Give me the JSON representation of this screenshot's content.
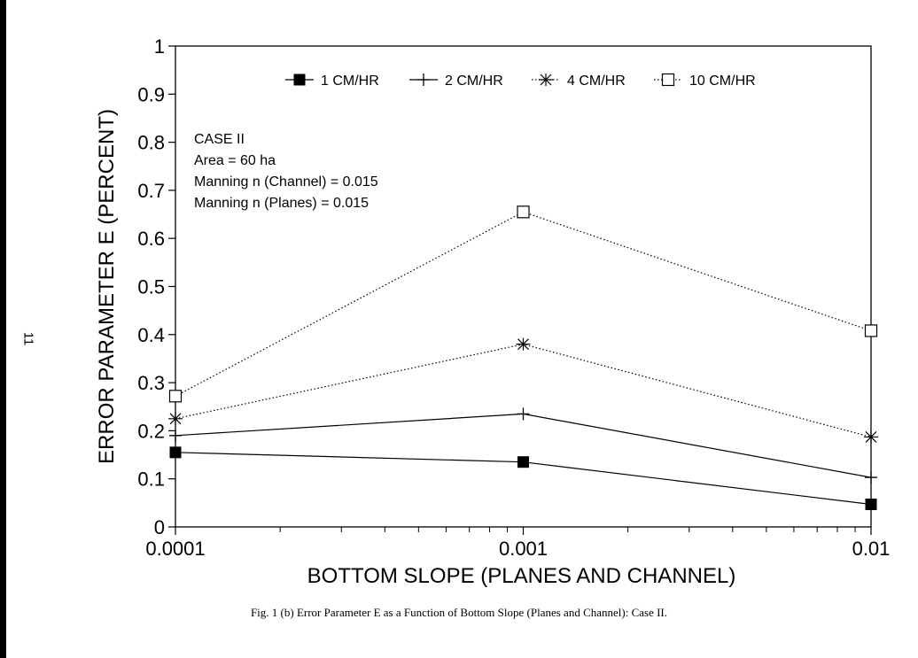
{
  "page_number": "11",
  "caption": "Fig. 1 (b) Error Parameter E as a Function of Bottom Slope (Planes and Channel): Case II.",
  "chart_data": {
    "type": "line",
    "title": "",
    "xlabel": "BOTTOM SLOPE (PLANES AND CHANNEL)",
    "ylabel": "ERROR PARAMETER E (PERCENT)",
    "x_scale": "log",
    "xlim": [
      0.0001,
      0.01
    ],
    "ylim": [
      0,
      1
    ],
    "x_ticks": [
      0.0001,
      0.001,
      0.01
    ],
    "x_tick_labels": [
      "0.0001",
      "0.001",
      "0.01"
    ],
    "y_ticks": [
      0,
      0.1,
      0.2,
      0.3,
      0.4,
      0.5,
      0.6,
      0.7,
      0.8,
      0.9,
      1
    ],
    "y_tick_labels": [
      "0",
      "0.1",
      "0.2",
      "0.3",
      "0.4",
      "0.5",
      "0.6",
      "0.7",
      "0.8",
      "0.9",
      "1"
    ],
    "grid": false,
    "legend_position": "top",
    "annotation": [
      "CASE II",
      "Area = 60 ha",
      "Manning n (Channel) = 0.015",
      "Manning n (Planes) = 0.015"
    ],
    "x": [
      0.0001,
      0.001,
      0.01
    ],
    "series": [
      {
        "name": "1 CM/HR",
        "marker": "filled-square",
        "line": "solid",
        "values": [
          0.155,
          0.135,
          0.047
        ]
      },
      {
        "name": "2 CM/HR",
        "marker": "plus",
        "line": "solid",
        "values": [
          0.19,
          0.235,
          0.103
        ]
      },
      {
        "name": "4 CM/HR",
        "marker": "asterisk",
        "line": "dotted",
        "values": [
          0.225,
          0.38,
          0.187
        ]
      },
      {
        "name": "10 CM/HR",
        "marker": "open-square",
        "line": "dotted",
        "values": [
          0.272,
          0.655,
          0.408
        ]
      }
    ]
  }
}
